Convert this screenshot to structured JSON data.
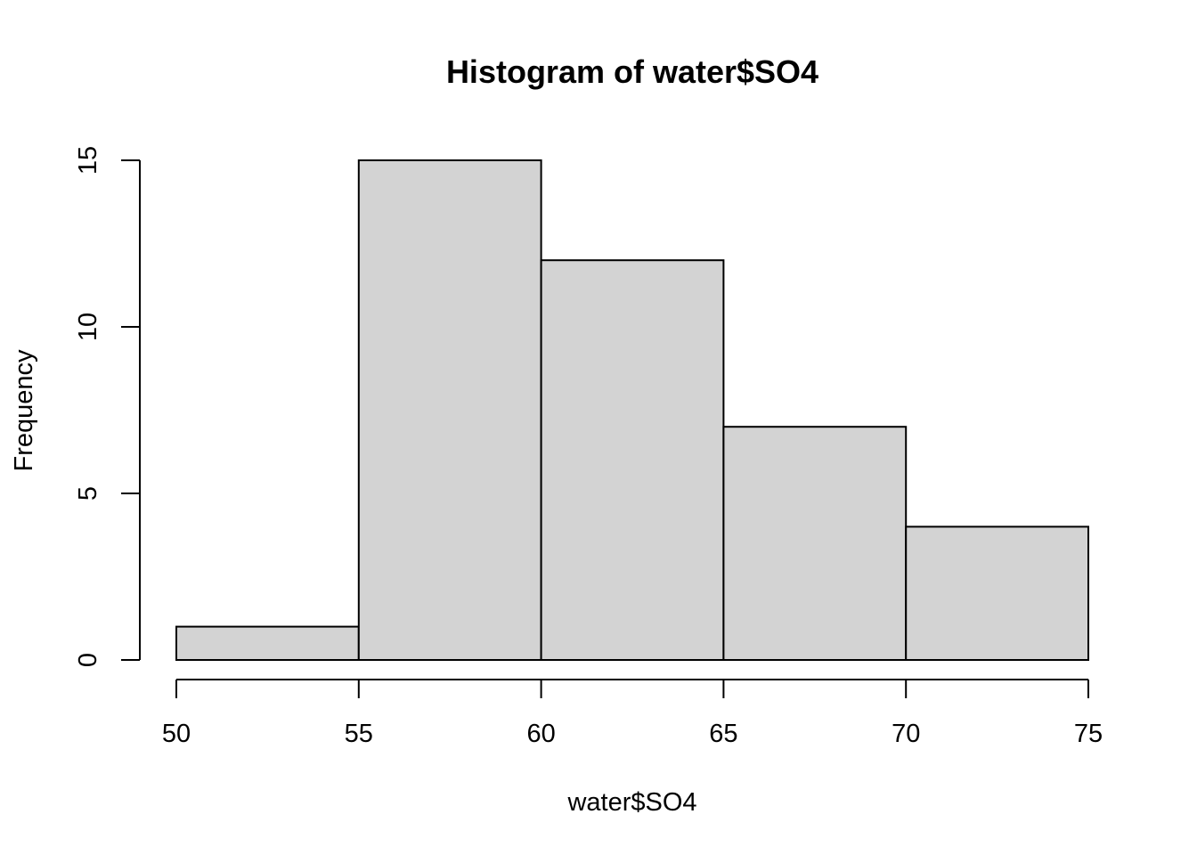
{
  "chart_data": {
    "type": "bar",
    "subtype": "histogram",
    "title": "Histogram of water$SO4",
    "xlabel": "water$SO4",
    "ylabel": "Frequency",
    "bins": [
      {
        "start": 50,
        "end": 55,
        "count": 1
      },
      {
        "start": 55,
        "end": 60,
        "count": 15
      },
      {
        "start": 60,
        "end": 65,
        "count": 12
      },
      {
        "start": 65,
        "end": 70,
        "count": 7
      },
      {
        "start": 70,
        "end": 75,
        "count": 4
      }
    ],
    "xlim": [
      50,
      75
    ],
    "ylim": [
      0,
      15
    ],
    "x_ticks": [
      "50",
      "55",
      "60",
      "65",
      "70",
      "75"
    ],
    "y_ticks": [
      "0",
      "5",
      "10",
      "15"
    ],
    "grid": false,
    "legend": "none",
    "bar_fill": "#d3d3d3",
    "bar_stroke": "#000000"
  }
}
